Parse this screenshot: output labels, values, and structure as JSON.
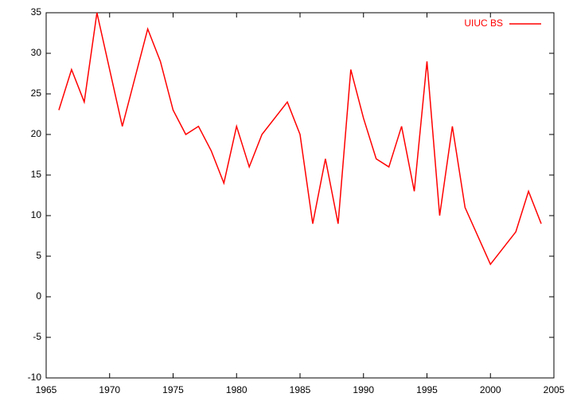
{
  "chart_data": {
    "type": "line",
    "x": [
      1966,
      1967,
      1968,
      1969,
      1971,
      1973,
      1974,
      1975,
      1976,
      1977,
      1978,
      1979,
      1980,
      1981,
      1982,
      1984,
      1985,
      1986,
      1987,
      1988,
      1989,
      1990,
      1991,
      1992,
      1993,
      1994,
      1995,
      1996,
      1997,
      1998,
      2000,
      2002,
      2003,
      2004
    ],
    "series": [
      {
        "name": "UIUC BS",
        "color": "#ff0000",
        "values": [
          23,
          28,
          24,
          35,
          21,
          33,
          29,
          23,
          20,
          21,
          18,
          14,
          21,
          16,
          20,
          24,
          20,
          9,
          17,
          9,
          28,
          22,
          17,
          16,
          21,
          13,
          29,
          10,
          21,
          11,
          4,
          8,
          13,
          9
        ]
      }
    ],
    "xlim": [
      1965,
      2005
    ],
    "xticks": [
      1965,
      1970,
      1975,
      1980,
      1985,
      1990,
      1995,
      2000,
      2005
    ],
    "ylim": [
      -10,
      35
    ],
    "yticks": [
      -10,
      -5,
      0,
      5,
      10,
      15,
      20,
      25,
      30,
      35
    ],
    "legend": "top-right",
    "grid": false
  }
}
